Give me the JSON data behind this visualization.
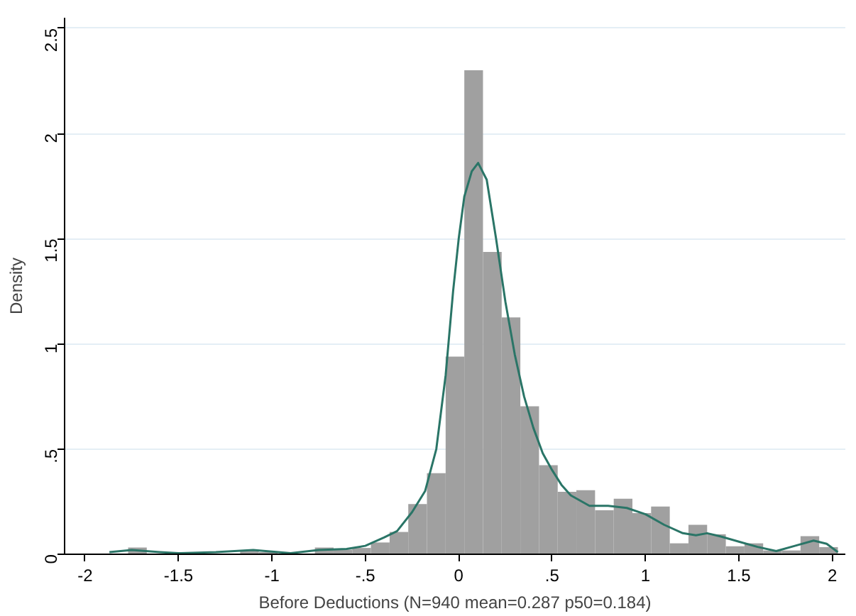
{
  "chart_data": {
    "type": "histogram",
    "xlabel": "Before Deductions (N=940 mean=0.287 p50=0.184)",
    "ylabel": "Density",
    "bins": [
      -1.87,
      -1.77,
      -1.67,
      -1.57,
      -1.47,
      -1.37,
      -1.27,
      -1.17,
      -1.07,
      -0.97,
      -0.87,
      -0.77,
      -0.67,
      -0.57,
      -0.47,
      -0.37,
      -0.27,
      -0.17,
      -0.07,
      0.03,
      0.13,
      0.23,
      0.33,
      0.43,
      0.53,
      0.63,
      0.73,
      0.83,
      0.93,
      1.03,
      1.13,
      1.23,
      1.33,
      1.43,
      1.53,
      1.63,
      1.73,
      1.83,
      1.93,
      2.03
    ],
    "values": [
      null,
      0.032,
      null,
      0,
      0.01,
      null,
      0,
      0.018,
      0.01,
      null,
      null,
      0.032,
      0.022,
      0.03,
      0.056,
      0.106,
      0.239,
      0.385,
      0.939,
      2.3,
      1.437,
      1.126,
      0.703,
      0.423,
      0.297,
      0.304,
      0.209,
      0.264,
      0.196,
      0.227,
      0.052,
      0.14,
      0.095,
      0.038,
      0.052,
      0.018,
      0.018,
      0.086,
      0.034
    ],
    "color": "#a0a0a0",
    "series": [
      {
        "type": "line",
        "color": "#2a7567",
        "x": [
          -1.87,
          -1.75,
          -1.6,
          -1.5,
          -1.3,
          -1.1,
          -0.9,
          -0.75,
          -0.6,
          -0.5,
          -0.4,
          -0.33,
          -0.25,
          -0.18,
          -0.12,
          -0.07,
          -0.03,
          0.0,
          0.03,
          0.07,
          0.104,
          0.15,
          0.2,
          0.25,
          0.3,
          0.35,
          0.4,
          0.45,
          0.5,
          0.55,
          0.6,
          0.7,
          0.8,
          0.9,
          1.0,
          1.1,
          1.2,
          1.27,
          1.33,
          1.4,
          1.5,
          1.6,
          1.7,
          1.8,
          1.9,
          1.97,
          2.03
        ],
        "values": [
          0.01,
          0.02,
          0.01,
          0.005,
          0.01,
          0.02,
          0.005,
          0.02,
          0.025,
          0.04,
          0.08,
          0.11,
          0.2,
          0.3,
          0.5,
          0.85,
          1.25,
          1.5,
          1.7,
          1.82,
          1.86,
          1.78,
          1.5,
          1.2,
          0.95,
          0.75,
          0.6,
          0.48,
          0.4,
          0.33,
          0.28,
          0.23,
          0.23,
          0.22,
          0.19,
          0.14,
          0.1,
          0.09,
          0.1,
          0.085,
          0.06,
          0.035,
          0.015,
          0.04,
          0.065,
          0.05,
          0.01
        ]
      }
    ],
    "xlim": [
      -2.11,
      2.07
    ],
    "ylim": [
      0,
      2.55
    ],
    "xticks": [
      -2,
      {
        "value": -1.5,
        "label": "-1.5"
      },
      -1,
      {
        "value": -0.5,
        "label": "-.5"
      },
      0,
      {
        "value": 0.5,
        "label": ".5"
      },
      1,
      {
        "value": 1.5,
        "label": "1.5"
      },
      2
    ],
    "yticks": [
      0,
      {
        "value": 0.5,
        "label": ".5"
      },
      1,
      {
        "value": 1.5,
        "label": "1.5"
      },
      2,
      {
        "value": 2.5,
        "label": "2.5"
      }
    ],
    "grid": "y"
  }
}
